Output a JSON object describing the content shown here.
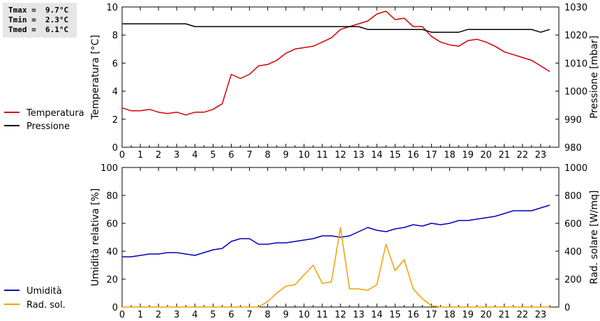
{
  "stats": {
    "tmax": "Tmax =  9.7°C",
    "tmin": "Tmin =  2.3°C",
    "tmed": "Tmed =  6.1°C"
  },
  "colors": {
    "temperature": "#d40000",
    "pressure": "#000000",
    "humidity": "#0000b4",
    "radiation": "#f0a000",
    "frame": "#000000"
  },
  "chart_data": [
    {
      "type": "line",
      "title": "",
      "xlabel": "",
      "ylabel": "Temperatura [°C]",
      "y2label": "Pressione [mbar]",
      "xlim": [
        0,
        24
      ],
      "ylim": [
        0,
        10
      ],
      "y2lim": [
        980,
        1030
      ],
      "xticks": [
        "0",
        "1",
        "2",
        "3",
        "4",
        "5",
        "6",
        "7",
        "8",
        "9",
        "10",
        "11",
        "12",
        "13",
        "14",
        "15",
        "16",
        "17",
        "18",
        "19",
        "20",
        "21",
        "22",
        "23"
      ],
      "yticks": [
        "0",
        "2",
        "4",
        "6",
        "8",
        "10"
      ],
      "y2ticks": [
        "980",
        "990",
        "1000",
        "1010",
        "1020",
        "1030"
      ],
      "grid": false,
      "legend_position": "left",
      "series": [
        {
          "name": "Temperatura",
          "axis": "left",
          "x": [
            0,
            0.5,
            1,
            1.5,
            2,
            2.5,
            3,
            3.5,
            4,
            4.5,
            5,
            5.5,
            6,
            6.5,
            7,
            7.5,
            8,
            8.5,
            9,
            9.5,
            10,
            10.5,
            11,
            11.5,
            12,
            12.5,
            13,
            13.5,
            14,
            14.5,
            15,
            15.5,
            16,
            16.5,
            17,
            17.5,
            18,
            18.5,
            19,
            19.5,
            20,
            20.5,
            21,
            21.5,
            22,
            22.5,
            23,
            23.5
          ],
          "y": [
            2.8,
            2.6,
            2.6,
            2.7,
            2.5,
            2.4,
            2.5,
            2.3,
            2.5,
            2.5,
            2.7,
            3.1,
            5.2,
            4.9,
            5.2,
            5.8,
            5.9,
            6.2,
            6.7,
            7.0,
            7.1,
            7.2,
            7.5,
            7.8,
            8.4,
            8.6,
            8.8,
            9.0,
            9.5,
            9.7,
            9.1,
            9.2,
            8.6,
            8.6,
            7.9,
            7.5,
            7.3,
            7.2,
            7.6,
            7.7,
            7.5,
            7.2,
            6.8,
            6.6,
            6.4,
            6.2,
            5.8,
            5.4
          ]
        },
        {
          "name": "Pressione",
          "axis": "right",
          "x": [
            0,
            3.5,
            4,
            13,
            13.5,
            16.5,
            17,
            18.5,
            19,
            22.5,
            23,
            23.5
          ],
          "y": [
            1024,
            1024,
            1023,
            1023,
            1022,
            1022,
            1021,
            1021,
            1022,
            1022,
            1021,
            1022
          ]
        }
      ]
    },
    {
      "type": "line",
      "title": "",
      "xlabel": "",
      "ylabel": "Umidità relativa [%]",
      "y2label": "Rad. solare [W/mq]",
      "xlim": [
        0,
        24
      ],
      "ylim": [
        0,
        100
      ],
      "y2lim": [
        0,
        1000
      ],
      "xticks": [
        "0",
        "1",
        "2",
        "3",
        "4",
        "5",
        "6",
        "7",
        "8",
        "9",
        "10",
        "11",
        "12",
        "13",
        "14",
        "15",
        "16",
        "17",
        "18",
        "19",
        "20",
        "21",
        "22",
        "23"
      ],
      "yticks": [
        "0",
        "20",
        "40",
        "60",
        "80",
        "100"
      ],
      "y2ticks": [
        "0",
        "200",
        "400",
        "600",
        "800",
        "1000"
      ],
      "grid": false,
      "legend_position": "left",
      "series": [
        {
          "name": "Umidità",
          "axis": "left",
          "x": [
            0,
            0.5,
            1,
            1.5,
            2,
            2.5,
            3,
            3.5,
            4,
            4.5,
            5,
            5.5,
            6,
            6.5,
            7,
            7.5,
            8,
            8.5,
            9,
            9.5,
            10,
            10.5,
            11,
            11.5,
            12,
            12.5,
            13,
            13.5,
            14,
            14.5,
            15,
            15.5,
            16,
            16.5,
            17,
            17.5,
            18,
            18.5,
            19,
            19.5,
            20,
            20.5,
            21,
            21.5,
            22,
            22.5,
            23,
            23.5
          ],
          "y": [
            36,
            36,
            37,
            38,
            38,
            39,
            39,
            38,
            37,
            39,
            41,
            42,
            47,
            49,
            49,
            45,
            45,
            46,
            46,
            47,
            48,
            49,
            51,
            51,
            50,
            51,
            54,
            57,
            55,
            54,
            56,
            57,
            59,
            58,
            60,
            59,
            60,
            62,
            62,
            63,
            64,
            65,
            67,
            69,
            69,
            69,
            71,
            73
          ]
        },
        {
          "name": "Rad. sol.",
          "axis": "right",
          "x": [
            0,
            7.5,
            8,
            8.5,
            9,
            9.5,
            10,
            10.5,
            11,
            11.5,
            12,
            12.5,
            13,
            13.5,
            14,
            14.5,
            15,
            15.5,
            16,
            16.5,
            17,
            17.5,
            18,
            18.5,
            19,
            19.5,
            20,
            20.5,
            21,
            21.5,
            22,
            22.5,
            23,
            23.5
          ],
          "y": [
            0,
            0,
            40,
            100,
            150,
            160,
            230,
            300,
            170,
            180,
            570,
            130,
            130,
            120,
            160,
            450,
            260,
            340,
            130,
            60,
            10,
            0,
            0,
            0,
            0,
            0,
            0,
            0,
            0,
            0,
            0,
            0,
            0,
            0
          ]
        }
      ]
    }
  ]
}
